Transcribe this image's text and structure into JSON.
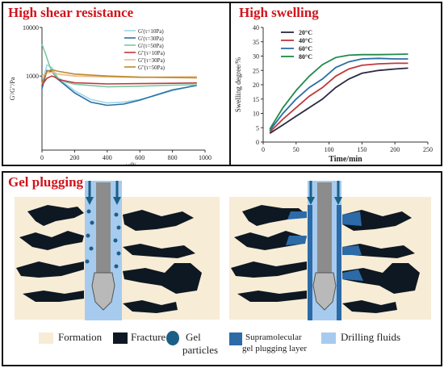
{
  "top_left": {
    "title": "High shear resistance",
    "chart_data": {
      "type": "line",
      "xlabel": "γ/%",
      "ylabel": "G'/G\"/Pa",
      "x_scale": "linear",
      "y_scale": "log",
      "xlim": [
        0,
        1000
      ],
      "ylim": [
        30,
        10000
      ],
      "x_ticks": [
        "0",
        "200",
        "400",
        "600",
        "800",
        "1000"
      ],
      "y_ticks": [
        "10000",
        "1000"
      ],
      "series": [
        {
          "name": "G'(τ=10Pa)",
          "color": "#9fd6e8",
          "x": [
            0,
            30,
            60,
            100,
            200,
            300,
            400,
            500,
            600,
            700,
            800,
            950
          ],
          "y": [
            650,
            1700,
            1500,
            900,
            500,
            330,
            280,
            290,
            330,
            400,
            500,
            650
          ]
        },
        {
          "name": "G'(τ=30Pa)",
          "color": "#2b6fa3",
          "x": [
            0,
            30,
            60,
            100,
            200,
            300,
            400,
            500,
            600,
            700,
            800,
            950
          ],
          "y": [
            550,
            1300,
            1250,
            850,
            450,
            290,
            250,
            265,
            320,
            410,
            520,
            640
          ]
        },
        {
          "name": "G'(τ=50Pa)",
          "color": "#7cc7a2",
          "x": [
            0,
            20,
            50,
            80,
            100,
            150,
            200,
            400,
            600,
            800,
            950
          ],
          "y": [
            4500,
            3000,
            1500,
            1050,
            900,
            750,
            680,
            600,
            620,
            650,
            660
          ]
        },
        {
          "name": "G''(τ=10Pa)",
          "color": "#c0393b",
          "x": [
            0,
            30,
            60,
            80,
            100,
            200,
            400,
            600,
            800,
            950
          ],
          "y": [
            650,
            900,
            1000,
            950,
            850,
            730,
            690,
            700,
            710,
            720
          ]
        },
        {
          "name": "G''(τ=30Pa)",
          "color": "#ecb98a",
          "x": [
            0,
            30,
            60,
            80,
            100,
            200,
            400,
            600,
            800,
            950
          ],
          "y": [
            1000,
            1150,
            1200,
            1150,
            1100,
            1000,
            960,
            940,
            960,
            970
          ]
        },
        {
          "name": "G''(τ=50Pa)",
          "color": "#b98a2a",
          "x": [
            0,
            30,
            60,
            80,
            100,
            200,
            400,
            600,
            800,
            950
          ],
          "y": [
            700,
            1250,
            1350,
            1300,
            1250,
            1100,
            1000,
            950,
            930,
            920
          ]
        }
      ]
    }
  },
  "top_right": {
    "title": "High swelling",
    "chart_data": {
      "type": "line",
      "xlabel": "Time/min",
      "ylabel": "Swelling degree/%",
      "xlim": [
        0,
        250
      ],
      "ylim": [
        0,
        40
      ],
      "x_ticks": [
        "0",
        "50",
        "100",
        "150",
        "200",
        "250"
      ],
      "y_ticks": [
        "0",
        "5",
        "10",
        "15",
        "20",
        "25",
        "30",
        "35",
        "40"
      ],
      "series": [
        {
          "name": "20°C",
          "color": "#2a2a40",
          "x": [
            10,
            30,
            50,
            70,
            90,
            110,
            130,
            150,
            175,
            200,
            220
          ],
          "y": [
            3,
            6,
            9,
            12,
            15,
            19,
            22,
            24,
            25,
            25.5,
            25.8
          ]
        },
        {
          "name": "40°C",
          "color": "#c0393b",
          "x": [
            10,
            30,
            50,
            70,
            90,
            110,
            130,
            150,
            175,
            200,
            220
          ],
          "y": [
            3.5,
            8,
            12,
            16,
            19,
            23,
            25.5,
            26.8,
            27.3,
            27.5,
            27.5
          ]
        },
        {
          "name": "60°C",
          "color": "#2b6fa3",
          "x": [
            10,
            30,
            50,
            70,
            90,
            110,
            130,
            150,
            175,
            200,
            220
          ],
          "y": [
            4,
            10,
            15,
            19,
            22,
            26,
            28,
            29,
            29.2,
            29,
            29
          ]
        },
        {
          "name": "80°C",
          "color": "#1f8a4a",
          "x": [
            10,
            30,
            50,
            70,
            90,
            110,
            130,
            150,
            175,
            200,
            220
          ],
          "y": [
            4.5,
            12,
            18,
            23,
            27,
            29.5,
            30.3,
            30.5,
            30.5,
            30.6,
            30.7
          ]
        }
      ]
    }
  },
  "bottom": {
    "title": "Gel plugging",
    "colors": {
      "formation": "#f7ecd6",
      "fracture": "#0e1822",
      "gel_particles": "#1a5f86",
      "gel_layer": "#2c6aa8",
      "drilling_fluids": "#a6cbee"
    },
    "legend": {
      "formation": "Formation",
      "fracture": "Fracture",
      "gel_line1": "Gel",
      "gel_line2": "particles",
      "supra_line1": "Supramolecular",
      "supra_line2": "gel plugging layer",
      "drilling": "Drilling fluids"
    }
  }
}
